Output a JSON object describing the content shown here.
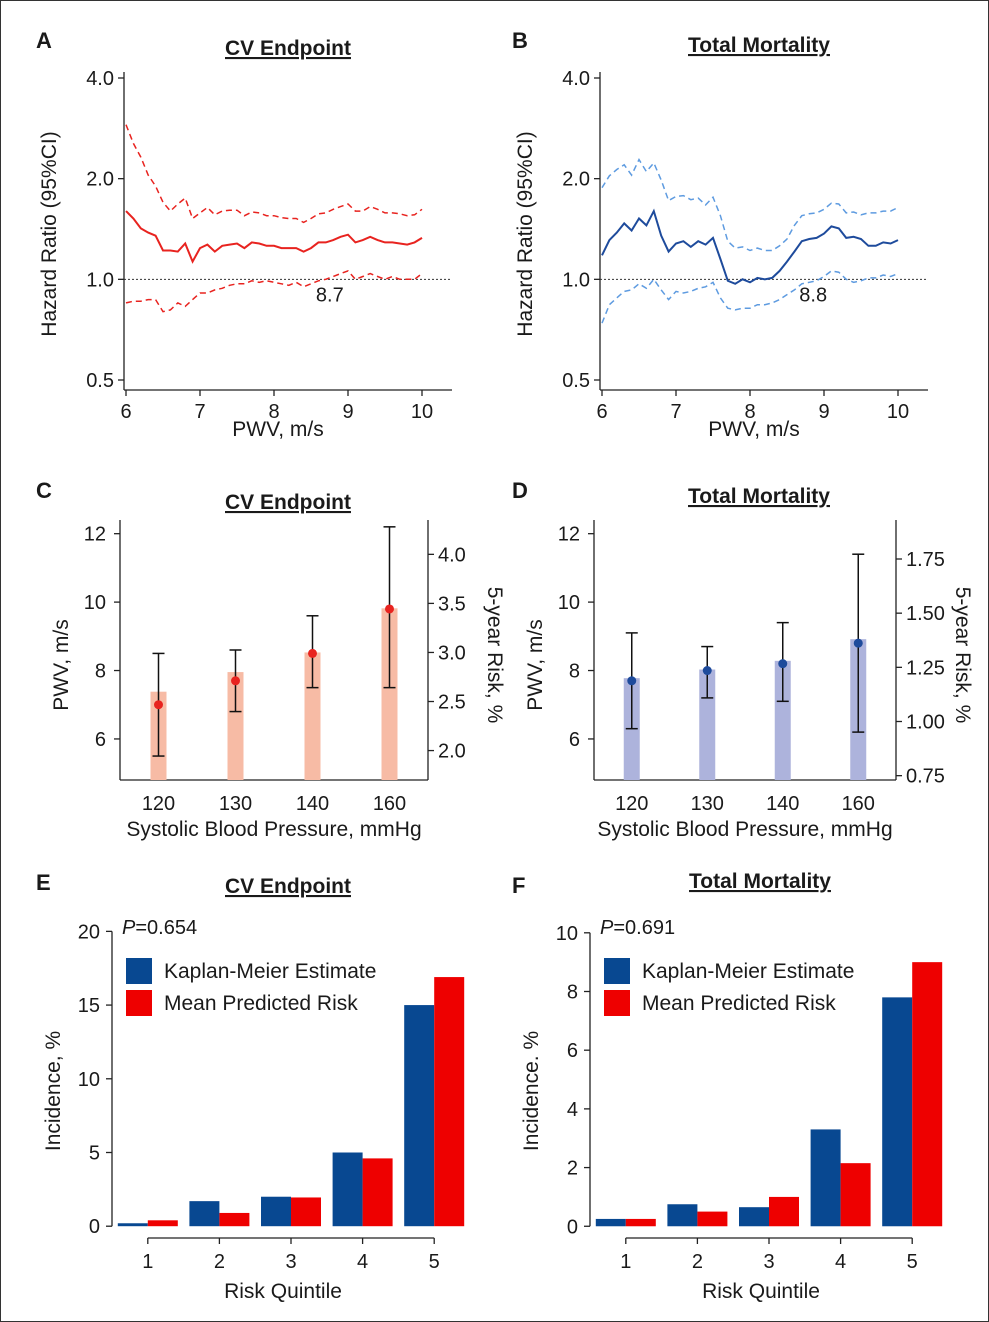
{
  "chart_data": [
    {
      "panel": "A",
      "type": "line",
      "title": "CV Endpoint",
      "xlabel": "PWV, m/s",
      "ylabel": "Hazard Ratio (95%CI)",
      "y_scale": "log",
      "xlim": [
        6,
        10
      ],
      "ylim": [
        0.5,
        4.0
      ],
      "x_ticks": [
        "6",
        "7",
        "8",
        "9",
        "10"
      ],
      "y_ticks": [
        "0.5",
        "1.0",
        "2.0",
        "4.0"
      ],
      "reference_line": 1.0,
      "annotation": "8.7",
      "colors": {
        "line": "#e8231f"
      },
      "x": [
        6.0,
        6.1,
        6.2,
        6.3,
        6.4,
        6.5,
        6.6,
        6.7,
        6.8,
        6.9,
        7.0,
        7.1,
        7.2,
        7.3,
        7.4,
        7.5,
        7.6,
        7.7,
        7.8,
        7.9,
        8.0,
        8.1,
        8.2,
        8.3,
        8.4,
        8.5,
        8.6,
        8.7,
        8.8,
        8.9,
        9.0,
        9.1,
        9.2,
        9.3,
        9.4,
        9.5,
        9.6,
        9.7,
        9.8,
        9.9,
        10.0
      ],
      "hr": [
        1.6,
        1.52,
        1.42,
        1.38,
        1.35,
        1.22,
        1.22,
        1.21,
        1.28,
        1.13,
        1.24,
        1.27,
        1.21,
        1.26,
        1.27,
        1.28,
        1.24,
        1.29,
        1.28,
        1.26,
        1.26,
        1.24,
        1.24,
        1.24,
        1.21,
        1.24,
        1.29,
        1.29,
        1.31,
        1.34,
        1.36,
        1.29,
        1.31,
        1.34,
        1.31,
        1.29,
        1.29,
        1.28,
        1.27,
        1.29,
        1.33
      ],
      "lower": [
        0.85,
        0.86,
        0.86,
        0.87,
        0.87,
        0.8,
        0.81,
        0.85,
        0.83,
        0.87,
        0.91,
        0.91,
        0.93,
        0.94,
        0.96,
        0.97,
        0.97,
        0.99,
        0.98,
        0.99,
        0.98,
        0.97,
        0.96,
        0.98,
        0.95,
        0.97,
        0.99,
        1.0,
        1.02,
        1.04,
        1.06,
        1.0,
        1.02,
        1.04,
        1.02,
        1.0,
        1.02,
        1.0,
        1.0,
        1.0,
        1.04
      ],
      "upper": [
        2.9,
        2.55,
        2.32,
        2.05,
        1.9,
        1.7,
        1.6,
        1.68,
        1.75,
        1.52,
        1.58,
        1.64,
        1.56,
        1.6,
        1.61,
        1.61,
        1.55,
        1.59,
        1.58,
        1.55,
        1.55,
        1.53,
        1.52,
        1.52,
        1.48,
        1.52,
        1.57,
        1.58,
        1.62,
        1.65,
        1.68,
        1.6,
        1.6,
        1.65,
        1.62,
        1.58,
        1.58,
        1.57,
        1.55,
        1.56,
        1.62
      ]
    },
    {
      "panel": "B",
      "type": "line",
      "title": "Total Mortality",
      "xlabel": "PWV, m/s",
      "ylabel": "Hazard Ratio (95%CI)",
      "y_scale": "log",
      "xlim": [
        6,
        10
      ],
      "ylim": [
        0.5,
        4.0
      ],
      "x_ticks": [
        "6",
        "7",
        "8",
        "9",
        "10"
      ],
      "y_ticks": [
        "0.5",
        "1.0",
        "2.0",
        "4.0"
      ],
      "reference_line": 1.0,
      "annotation": "8.8",
      "colors": {
        "line": "#1e4b9c",
        "ci": "#5e9be0"
      },
      "x": [
        6.0,
        6.1,
        6.2,
        6.3,
        6.4,
        6.5,
        6.6,
        6.7,
        6.8,
        6.9,
        7.0,
        7.1,
        7.2,
        7.3,
        7.4,
        7.5,
        7.6,
        7.7,
        7.8,
        7.9,
        8.0,
        8.1,
        8.2,
        8.3,
        8.4,
        8.5,
        8.6,
        8.7,
        8.8,
        8.9,
        9.0,
        9.1,
        9.2,
        9.3,
        9.4,
        9.5,
        9.6,
        9.7,
        9.8,
        9.9,
        10.0
      ],
      "hr": [
        1.18,
        1.31,
        1.38,
        1.47,
        1.4,
        1.52,
        1.45,
        1.6,
        1.35,
        1.21,
        1.28,
        1.3,
        1.25,
        1.3,
        1.27,
        1.33,
        1.15,
        0.99,
        0.97,
        1.0,
        0.98,
        1.01,
        1.0,
        1.01,
        1.06,
        1.13,
        1.21,
        1.3,
        1.32,
        1.33,
        1.37,
        1.44,
        1.42,
        1.33,
        1.34,
        1.32,
        1.26,
        1.26,
        1.29,
        1.28,
        1.31
      ],
      "lower": [
        0.74,
        0.84,
        0.88,
        0.92,
        0.93,
        0.97,
        0.94,
        1.0,
        0.93,
        0.87,
        0.92,
        0.91,
        0.92,
        0.94,
        0.95,
        0.98,
        0.88,
        0.82,
        0.81,
        0.82,
        0.82,
        0.84,
        0.84,
        0.85,
        0.87,
        0.9,
        0.93,
        0.97,
        0.98,
        0.99,
        1.02,
        1.06,
        1.05,
        1.0,
        0.98,
        0.99,
        1.01,
        1.01,
        1.03,
        1.02,
        1.04
      ],
      "upper": [
        1.88,
        2.04,
        2.13,
        2.2,
        2.05,
        2.28,
        2.1,
        2.23,
        1.98,
        1.72,
        1.77,
        1.78,
        1.73,
        1.75,
        1.67,
        1.76,
        1.55,
        1.3,
        1.24,
        1.25,
        1.22,
        1.24,
        1.22,
        1.22,
        1.26,
        1.32,
        1.45,
        1.55,
        1.57,
        1.58,
        1.62,
        1.69,
        1.68,
        1.58,
        1.59,
        1.56,
        1.58,
        1.58,
        1.6,
        1.6,
        1.64
      ]
    },
    {
      "panel": "C",
      "type": "bar",
      "title": "CV Endpoint",
      "xlabel": "Systolic Blood Pressure, mmHg",
      "ylabel": "PWV, m/s",
      "y2label": "5-year Risk, %",
      "categories": [
        "120",
        "130",
        "140",
        "160"
      ],
      "ylim": [
        4.8,
        12.4
      ],
      "y_ticks": [
        "6",
        "8",
        "10",
        "12"
      ],
      "y2lim": [
        1.7,
        4.35
      ],
      "y2_ticks": [
        "2.0",
        "2.5",
        "3.0",
        "3.5",
        "4.0"
      ],
      "risk_bars": [
        2.6,
        2.8,
        3.0,
        3.45
      ],
      "pwv_mean": [
        7.0,
        7.7,
        8.5,
        9.8
      ],
      "pwv_lower": [
        5.5,
        6.8,
        7.5,
        7.5
      ],
      "pwv_upper": [
        8.5,
        8.6,
        9.6,
        12.2
      ],
      "colors": {
        "bar": "#f7bba5",
        "point": "#e8231f"
      }
    },
    {
      "panel": "D",
      "type": "bar",
      "title": "Total Mortality",
      "xlabel": "Systolic Blood Pressure, mmHg",
      "ylabel": "PWV, m/s",
      "y2label": "5-year Risk, %",
      "categories": [
        "120",
        "130",
        "140",
        "160"
      ],
      "ylim": [
        4.8,
        12.4
      ],
      "y_ticks": [
        "6",
        "8",
        "10",
        "12"
      ],
      "y2lim": [
        0.73,
        1.93
      ],
      "y2_ticks": [
        "0.75",
        "1.00",
        "1.25",
        "1.50",
        "1.75"
      ],
      "risk_bars": [
        1.2,
        1.24,
        1.28,
        1.38
      ],
      "pwv_mean": [
        7.7,
        8.0,
        8.2,
        8.8
      ],
      "pwv_lower": [
        6.3,
        7.2,
        7.1,
        6.2
      ],
      "pwv_upper": [
        9.1,
        8.7,
        9.4,
        11.4
      ],
      "colors": {
        "bar": "#adb3dc",
        "point": "#1e4b9c"
      }
    },
    {
      "panel": "E",
      "type": "bar",
      "title": "CV Endpoint",
      "xlabel": "Risk Quintile",
      "ylabel": "Incidence, %",
      "annotation": {
        "italic": "P",
        "text": "=0.654"
      },
      "categories": [
        "1",
        "2",
        "3",
        "4",
        "5"
      ],
      "ylim": [
        -0.8,
        20.5
      ],
      "y_ticks": [
        "0",
        "5",
        "10",
        "15",
        "20"
      ],
      "series": [
        {
          "name": "Kaplan-Meier Estimate",
          "color": "#084891",
          "values": [
            0.2,
            1.7,
            2.0,
            5.0,
            15.0
          ]
        },
        {
          "name": "Mean Predicted Risk",
          "color": "#ee0000",
          "values": [
            0.4,
            0.9,
            1.95,
            4.6,
            16.9
          ]
        }
      ]
    },
    {
      "panel": "F",
      "type": "bar",
      "title": "Total Mortality",
      "xlabel": "Risk Quintile",
      "ylabel": "Incidence. %",
      "annotation": {
        "italic": "P",
        "text": "=0.691"
      },
      "categories": [
        "1",
        "2",
        "3",
        "4",
        "5"
      ],
      "ylim": [
        -0.4,
        10.3
      ],
      "y_ticks": [
        "0",
        "2",
        "4",
        "6",
        "8",
        "10"
      ],
      "series": [
        {
          "name": "Kaplan-Meier Estimate",
          "color": "#084891",
          "values": [
            0.25,
            0.75,
            0.65,
            3.3,
            7.8
          ]
        },
        {
          "name": "Mean Predicted Risk",
          "color": "#ee0000",
          "values": [
            0.25,
            0.5,
            1.0,
            2.15,
            9.0
          ]
        }
      ]
    }
  ]
}
